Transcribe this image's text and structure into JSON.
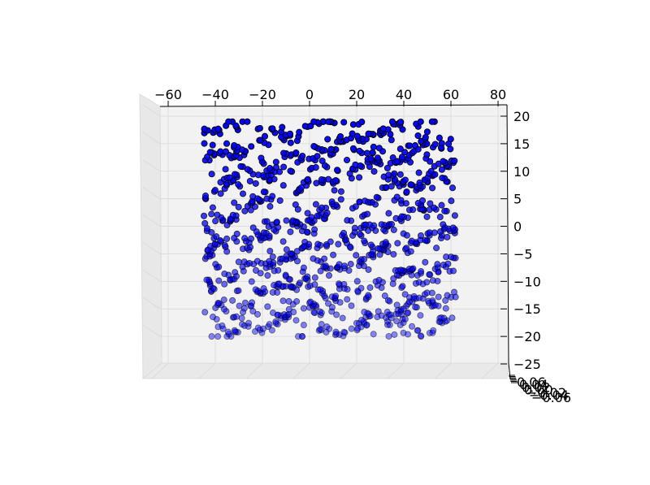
{
  "chart_data": {
    "type": "scatter",
    "projection": "3d",
    "title": "",
    "xlabel": "",
    "ylabel": "",
    "zlabel": "",
    "marker_color": "#0000ff",
    "marker_edge": "#000000",
    "pane_color": "#f2f2f2",
    "grid": true,
    "xlim": [
      -65,
      80
    ],
    "zlim": [
      -25,
      20
    ],
    "x_ticks": [
      -60,
      -40,
      -20,
      0,
      20,
      40,
      60,
      80
    ],
    "x_tick_labels": [
      "−60",
      "−40",
      "−20",
      "0",
      "20",
      "40",
      "60",
      "80"
    ],
    "z_ticks": [
      20,
      15,
      10,
      5,
      0,
      -5,
      -10,
      -15,
      -20,
      -25
    ],
    "z_tick_labels": [
      "20",
      "15",
      "10",
      "5",
      "0",
      "−5",
      "−10",
      "−15",
      "−20",
      "−25"
    ],
    "y_tick_labels": [
      "0.06",
      "0.04",
      "0.02",
      "0.00",
      "−0.02",
      "−0.04",
      "−0.06"
    ],
    "point_region": {
      "x": [
        -45,
        62
      ],
      "z": [
        -20,
        19
      ]
    },
    "point_count": 1100,
    "note_points": "approximately 1100 points (estimated) forming a dense tangled band structure; depth coordinate near 0"
  }
}
